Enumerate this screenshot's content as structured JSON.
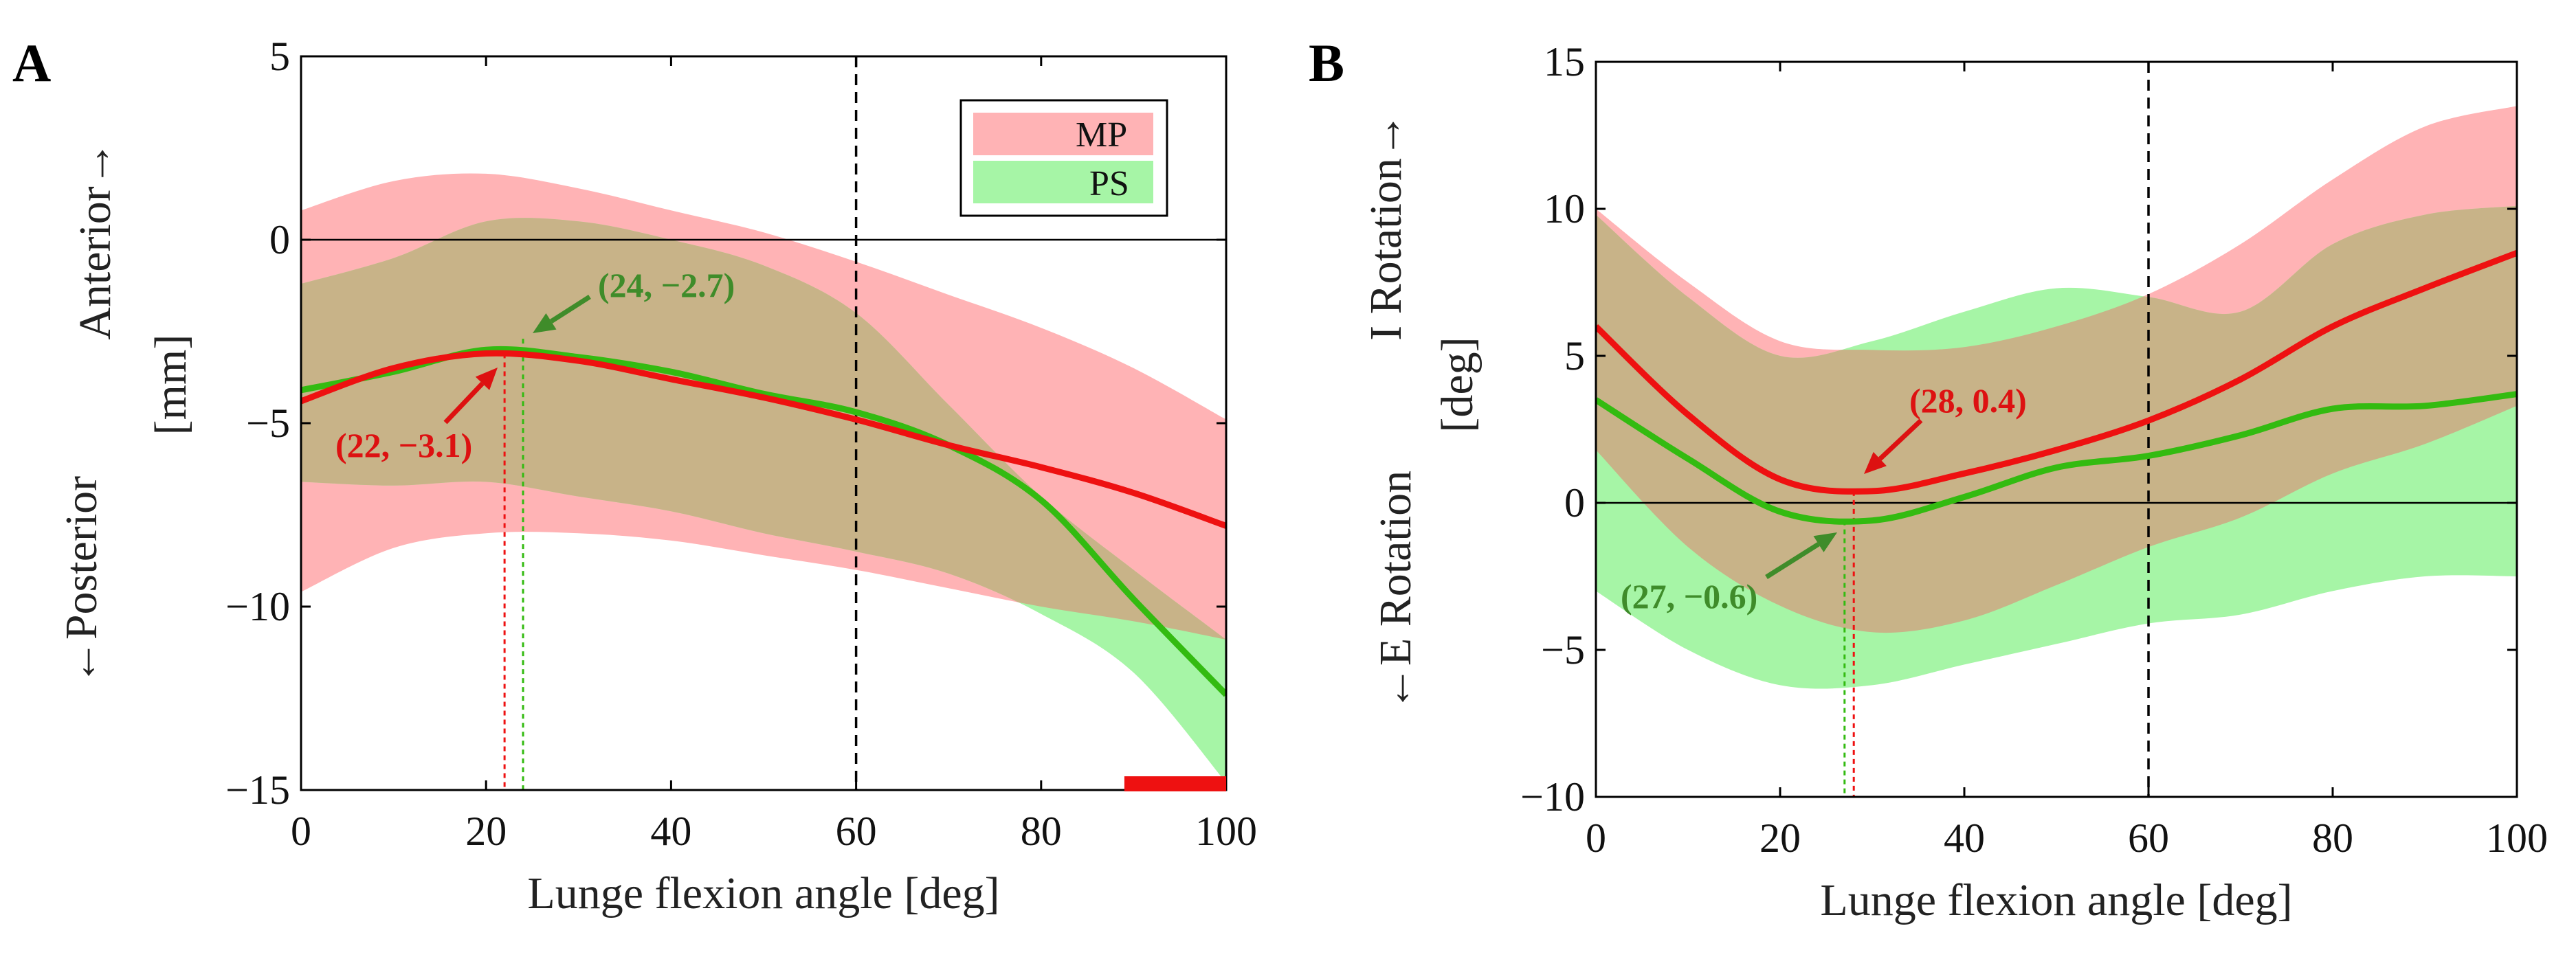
{
  "chart_data": [
    {
      "panel_label": "A",
      "type": "line",
      "xlabel": "Lunge flexion angle [deg]",
      "ylabel_lines": [
        "←Posterior",
        "Anterior→"
      ],
      "ylabel_unit": "[mm]",
      "xlim": [
        0,
        100
      ],
      "ylim": [
        -15,
        5
      ],
      "xticks": [
        "0",
        "20",
        "40",
        "60",
        "80",
        "100"
      ],
      "yticks": [
        "5",
        "0",
        "-5",
        "-10",
        "-15"
      ],
      "vline_x": 60,
      "significance_bar": [
        89,
        100
      ],
      "legend": [
        "MP",
        "PS"
      ],
      "colors": {
        "MP_line": "#ee1111",
        "MP_band": "#ffb3b5",
        "PS_line": "#33bb11",
        "PS_band": "#a6f5a6",
        "overlap": "#c8b388",
        "annot_red": "#dd1111",
        "annot_green": "#3f8c2a"
      },
      "x": [
        0,
        10,
        20,
        30,
        40,
        50,
        60,
        70,
        80,
        90,
        100
      ],
      "series": [
        {
          "name": "MP",
          "mean": [
            -4.4,
            -3.5,
            -3.1,
            -3.3,
            -3.8,
            -4.3,
            -4.9,
            -5.6,
            -6.2,
            -6.9,
            -7.8
          ],
          "upper": [
            0.8,
            1.6,
            1.8,
            1.4,
            0.8,
            0.2,
            -0.6,
            -1.5,
            -2.4,
            -3.5,
            -4.9
          ],
          "lower": [
            -9.6,
            -8.4,
            -8.0,
            -8.0,
            -8.2,
            -8.6,
            -9.0,
            -9.5,
            -10.0,
            -10.4,
            -10.9
          ]
        },
        {
          "name": "PS",
          "mean": [
            -4.1,
            -3.6,
            -3.0,
            -3.2,
            -3.6,
            -4.2,
            -4.7,
            -5.6,
            -7.1,
            -9.8,
            -12.4
          ],
          "upper": [
            -1.2,
            -0.5,
            0.5,
            0.5,
            0.0,
            -0.7,
            -2.0,
            -4.5,
            -7.0,
            -9.0,
            -10.9
          ],
          "lower": [
            -6.6,
            -6.7,
            -6.6,
            -7.0,
            -7.4,
            -8.0,
            -8.5,
            -9.1,
            -10.2,
            -11.8,
            -14.8
          ]
        }
      ],
      "annotations": [
        {
          "series": "PS",
          "x": 24,
          "y": -2.7,
          "text": "(24, −2.7)"
        },
        {
          "series": "MP",
          "x": 22,
          "y": -3.1,
          "text": "(22, −3.1)"
        }
      ]
    },
    {
      "panel_label": "B",
      "type": "line",
      "xlabel": "Lunge flexion angle [deg]",
      "ylabel_lines": [
        "←E Rotation",
        "I Rotation→"
      ],
      "ylabel_unit": "[deg]",
      "xlim": [
        0,
        100
      ],
      "ylim": [
        -10,
        15
      ],
      "xticks": [
        "0",
        "20",
        "40",
        "60",
        "80",
        "100"
      ],
      "yticks": [
        "15",
        "10",
        "5",
        "0",
        "-5",
        "-10"
      ],
      "vline_x": 60,
      "x": [
        0,
        10,
        20,
        30,
        40,
        50,
        60,
        70,
        80,
        90,
        100
      ],
      "series": [
        {
          "name": "MP",
          "mean": [
            6.0,
            3.0,
            0.8,
            0.4,
            1.0,
            1.8,
            2.8,
            4.2,
            6.0,
            7.3,
            8.5
          ],
          "upper": [
            10.0,
            7.5,
            5.5,
            5.2,
            5.3,
            6.0,
            7.1,
            8.8,
            11.0,
            12.8,
            13.5
          ],
          "lower": [
            1.8,
            -1.5,
            -3.5,
            -4.4,
            -4.0,
            -2.8,
            -1.5,
            -0.5,
            1.0,
            2.0,
            3.3
          ]
        },
        {
          "name": "PS",
          "mean": [
            3.5,
            1.5,
            -0.3,
            -0.6,
            0.2,
            1.2,
            1.6,
            2.3,
            3.2,
            3.3,
            3.7
          ],
          "upper": [
            9.8,
            7.0,
            5.0,
            5.5,
            6.5,
            7.3,
            7.0,
            6.5,
            8.8,
            9.8,
            10.1
          ],
          "lower": [
            -3.0,
            -5.0,
            -6.2,
            -6.2,
            -5.5,
            -4.8,
            -4.1,
            -3.8,
            -3.0,
            -2.5,
            -2.5
          ]
        }
      ],
      "annotations": [
        {
          "series": "MP",
          "x": 28,
          "y": 0.4,
          "text": "(28, 0.4)"
        },
        {
          "series": "PS",
          "x": 27,
          "y": -0.6,
          "text": "(27, −0.6)"
        }
      ]
    }
  ]
}
